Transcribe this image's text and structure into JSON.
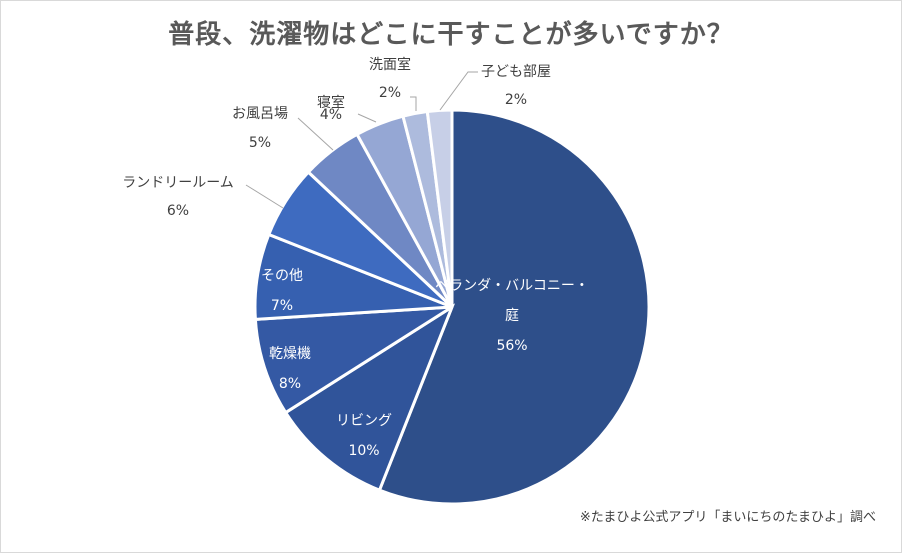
{
  "chart_data": {
    "type": "pie",
    "title": "普段、洗濯物はどこに干すことが多いですか？",
    "source_note": "※たまひよ公式アプリ「まいにちのたまひよ」調べ",
    "start": "top",
    "direction": "clockwise",
    "slices": [
      {
        "label": "ベランダ・バルコニー・庭",
        "label_lines": [
          "ベランダ・バルコニー・",
          "庭"
        ],
        "value": 56,
        "value_label": "56%",
        "color": "#2e4f8a",
        "label_inside": true
      },
      {
        "label": "リビング",
        "label_lines": [
          "リビング"
        ],
        "value": 10,
        "value_label": "10%",
        "color": "#30549a",
        "label_inside": true
      },
      {
        "label": "乾燥機",
        "label_lines": [
          "乾燥機"
        ],
        "value": 8,
        "value_label": "8%",
        "color": "#3459a4",
        "label_inside": true
      },
      {
        "label": "その他",
        "label_lines": [
          "その他"
        ],
        "value": 7,
        "value_label": "7%",
        "color": "#3660b0",
        "label_inside": true
      },
      {
        "label": "ランドリールーム",
        "label_lines": [
          "ランドリールーム"
        ],
        "value": 6,
        "value_label": "6%",
        "color": "#3e6bc0",
        "label_inside": false
      },
      {
        "label": "お風呂場",
        "label_lines": [
          "お風呂場"
        ],
        "value": 5,
        "value_label": "5%",
        "color": "#6f88c4",
        "label_inside": false
      },
      {
        "label": "寝室",
        "label_lines": [
          "寝室"
        ],
        "value": 4,
        "value_label": "4%",
        "color": "#95a7d4",
        "label_inside": false
      },
      {
        "label": "洗面室",
        "label_lines": [
          "洗面室"
        ],
        "value": 2,
        "value_label": "2%",
        "color": "#adbbdd",
        "label_inside": false
      },
      {
        "label": "子ども部屋",
        "label_lines": [
          "子ども部屋"
        ],
        "value": 2,
        "value_label": "2%",
        "color": "#c7cfe7",
        "label_inside": false
      }
    ],
    "legend": "none"
  }
}
